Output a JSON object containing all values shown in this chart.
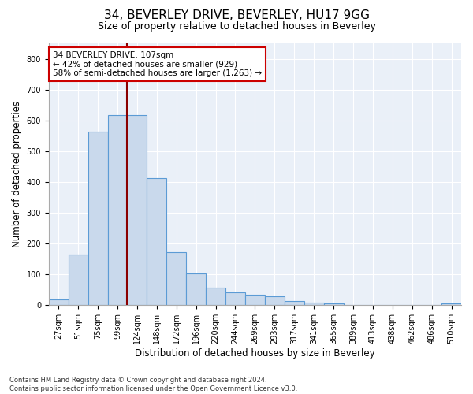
{
  "title1": "34, BEVERLEY DRIVE, BEVERLEY, HU17 9GG",
  "title2": "Size of property relative to detached houses in Beverley",
  "xlabel": "Distribution of detached houses by size in Beverley",
  "ylabel": "Number of detached properties",
  "categories": [
    "27sqm",
    "51sqm",
    "75sqm",
    "99sqm",
    "124sqm",
    "148sqm",
    "172sqm",
    "196sqm",
    "220sqm",
    "244sqm",
    "269sqm",
    "293sqm",
    "317sqm",
    "341sqm",
    "365sqm",
    "389sqm",
    "413sqm",
    "438sqm",
    "462sqm",
    "486sqm",
    "510sqm"
  ],
  "values": [
    20,
    165,
    563,
    618,
    617,
    413,
    173,
    103,
    56,
    43,
    33,
    30,
    13,
    8,
    5,
    0,
    0,
    0,
    0,
    0,
    5
  ],
  "bar_color": "#c9d9ec",
  "bar_edge_color": "#5b9bd5",
  "vline_color": "#8b0000",
  "annotation_text": "34 BEVERLEY DRIVE: 107sqm\n← 42% of detached houses are smaller (929)\n58% of semi-detached houses are larger (1,263) →",
  "annotation_box_color": "white",
  "annotation_box_edge_color": "#cc0000",
  "ylim": [
    0,
    850
  ],
  "yticks": [
    0,
    100,
    200,
    300,
    400,
    500,
    600,
    700,
    800
  ],
  "footnote": "Contains HM Land Registry data © Crown copyright and database right 2024.\nContains public sector information licensed under the Open Government Licence v3.0.",
  "bg_color": "#eaf0f8",
  "title1_fontsize": 11,
  "title2_fontsize": 9,
  "xlabel_fontsize": 8.5,
  "ylabel_fontsize": 8.5,
  "tick_fontsize": 7,
  "annot_fontsize": 7.5,
  "footnote_fontsize": 6
}
